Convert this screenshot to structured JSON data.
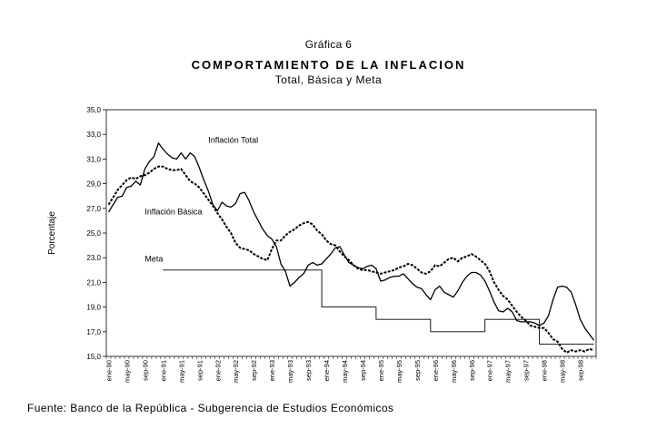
{
  "header": {
    "figure_label": "Gráfica 6",
    "title": "COMPORTAMIENTO DE LA INFLACION",
    "subtitle": "Total, Básica y Meta"
  },
  "footer": {
    "source": "Fuente: Banco de la República - Subgerencia de Estudios Económicos"
  },
  "colors": {
    "line": "#000000",
    "axis": "#000000",
    "background": "#ffffff"
  },
  "chart_data": {
    "type": "line",
    "title": "COMPORTAMIENTO DE LA INFLACION",
    "subtitle": "Total, Básica y Meta",
    "xlabel": "",
    "ylabel": "Porcentaje",
    "ylim": [
      15,
      35
    ],
    "yticks": [
      "15,0",
      "17,0",
      "19,0",
      "21,0",
      "23,0",
      "25,0",
      "27,0",
      "29,0",
      "31,0",
      "33,0",
      "35,0"
    ],
    "grid": false,
    "x_count": 108,
    "x_ticks": [
      {
        "i": 0,
        "label": "ene-90"
      },
      {
        "i": 4,
        "label": "may-90"
      },
      {
        "i": 8,
        "label": "sep-90"
      },
      {
        "i": 12,
        "label": "ene-91"
      },
      {
        "i": 16,
        "label": "may-91"
      },
      {
        "i": 20,
        "label": "sep-91"
      },
      {
        "i": 24,
        "label": "ene-92"
      },
      {
        "i": 28,
        "label": "may-92"
      },
      {
        "i": 32,
        "label": "sep-92"
      },
      {
        "i": 36,
        "label": "ene-93"
      },
      {
        "i": 40,
        "label": "may-93"
      },
      {
        "i": 44,
        "label": "sep-93"
      },
      {
        "i": 48,
        "label": "ene-94"
      },
      {
        "i": 52,
        "label": "may-94"
      },
      {
        "i": 56,
        "label": "sep-94"
      },
      {
        "i": 60,
        "label": "ene-95"
      },
      {
        "i": 64,
        "label": "may-95"
      },
      {
        "i": 68,
        "label": "sep-95"
      },
      {
        "i": 72,
        "label": "ene-96"
      },
      {
        "i": 76,
        "label": "may-96"
      },
      {
        "i": 80,
        "label": "sep-96"
      },
      {
        "i": 84,
        "label": "ene-97"
      },
      {
        "i": 88,
        "label": "may-97"
      },
      {
        "i": 92,
        "label": "sep-97"
      },
      {
        "i": 96,
        "label": "ene-98"
      },
      {
        "i": 100,
        "label": "may-98"
      },
      {
        "i": 104,
        "label": "sep-98"
      }
    ],
    "series": [
      {
        "name": "Inflación Total",
        "style": "solid",
        "points": [
          [
            0,
            26.7
          ],
          [
            1,
            27.3
          ],
          [
            2,
            27.9
          ],
          [
            3,
            28.0
          ],
          [
            4,
            28.7
          ],
          [
            5,
            28.8
          ],
          [
            6,
            29.2
          ],
          [
            7,
            28.9
          ],
          [
            8,
            30.2
          ],
          [
            9,
            30.8
          ],
          [
            10,
            31.2
          ],
          [
            11,
            32.3
          ],
          [
            12,
            31.8
          ],
          [
            13,
            31.4
          ],
          [
            14,
            31.1
          ],
          [
            15,
            31.0
          ],
          [
            16,
            31.5
          ],
          [
            17,
            31.0
          ],
          [
            18,
            31.5
          ],
          [
            19,
            31.2
          ],
          [
            20,
            30.3
          ],
          [
            21,
            29.3
          ],
          [
            22,
            28.4
          ],
          [
            23,
            27.3
          ],
          [
            24,
            26.8
          ],
          [
            25,
            27.5
          ],
          [
            26,
            27.2
          ],
          [
            27,
            27.1
          ],
          [
            28,
            27.4
          ],
          [
            29,
            28.2
          ],
          [
            30,
            28.3
          ],
          [
            31,
            27.6
          ],
          [
            32,
            26.7
          ],
          [
            33,
            26.0
          ],
          [
            34,
            25.3
          ],
          [
            35,
            24.8
          ],
          [
            36,
            24.5
          ],
          [
            37,
            23.9
          ],
          [
            38,
            22.5
          ],
          [
            39,
            21.9
          ],
          [
            40,
            20.7
          ],
          [
            41,
            21.0
          ],
          [
            42,
            21.4
          ],
          [
            43,
            21.7
          ],
          [
            44,
            22.4
          ],
          [
            45,
            22.6
          ],
          [
            46,
            22.4
          ],
          [
            47,
            22.5
          ],
          [
            48,
            22.9
          ],
          [
            49,
            23.3
          ],
          [
            50,
            23.8
          ],
          [
            51,
            23.9
          ],
          [
            52,
            23.2
          ],
          [
            53,
            22.6
          ],
          [
            54,
            22.4
          ],
          [
            55,
            22.2
          ],
          [
            56,
            22.1
          ],
          [
            57,
            22.3
          ],
          [
            58,
            22.4
          ],
          [
            59,
            22.1
          ],
          [
            60,
            21.1
          ],
          [
            61,
            21.2
          ],
          [
            62,
            21.4
          ],
          [
            63,
            21.5
          ],
          [
            64,
            21.5
          ],
          [
            65,
            21.7
          ],
          [
            66,
            21.3
          ],
          [
            67,
            20.9
          ],
          [
            68,
            20.6
          ],
          [
            69,
            20.5
          ],
          [
            70,
            20.0
          ],
          [
            71,
            19.6
          ],
          [
            72,
            20.4
          ],
          [
            73,
            20.7
          ],
          [
            74,
            20.2
          ],
          [
            75,
            20.0
          ],
          [
            76,
            19.8
          ],
          [
            77,
            20.3
          ],
          [
            78,
            21.0
          ],
          [
            79,
            21.5
          ],
          [
            80,
            21.8
          ],
          [
            81,
            21.8
          ],
          [
            82,
            21.6
          ],
          [
            83,
            21.1
          ],
          [
            84,
            20.3
          ],
          [
            85,
            19.4
          ],
          [
            86,
            18.7
          ],
          [
            87,
            18.6
          ],
          [
            88,
            18.9
          ],
          [
            89,
            18.6
          ],
          [
            90,
            17.9
          ],
          [
            91,
            17.8
          ],
          [
            92,
            17.8
          ],
          [
            93,
            17.8
          ],
          [
            94,
            17.7
          ],
          [
            95,
            17.5
          ],
          [
            96,
            17.7
          ],
          [
            97,
            18.3
          ],
          [
            98,
            19.6
          ],
          [
            99,
            20.6
          ],
          [
            100,
            20.7
          ],
          [
            101,
            20.6
          ],
          [
            102,
            20.2
          ],
          [
            103,
            19.2
          ],
          [
            104,
            18.0
          ],
          [
            105,
            17.3
          ],
          [
            106,
            16.8
          ],
          [
            107,
            16.3
          ]
        ]
      },
      {
        "name": "Inflación Básica",
        "style": "dashed",
        "points": [
          [
            0,
            27.3
          ],
          [
            1,
            27.9
          ],
          [
            2,
            28.5
          ],
          [
            3,
            28.9
          ],
          [
            4,
            29.3
          ],
          [
            5,
            29.5
          ],
          [
            6,
            29.4
          ],
          [
            7,
            29.6
          ],
          [
            8,
            29.7
          ],
          [
            9,
            29.9
          ],
          [
            10,
            30.2
          ],
          [
            11,
            30.4
          ],
          [
            12,
            30.4
          ],
          [
            13,
            30.2
          ],
          [
            14,
            30.1
          ],
          [
            15,
            30.1
          ],
          [
            16,
            30.2
          ],
          [
            17,
            29.7
          ],
          [
            18,
            29.2
          ],
          [
            19,
            29.0
          ],
          [
            20,
            28.7
          ],
          [
            21,
            28.2
          ],
          [
            22,
            27.7
          ],
          [
            23,
            27.2
          ],
          [
            24,
            26.6
          ],
          [
            25,
            26.1
          ],
          [
            26,
            25.5
          ],
          [
            27,
            25.0
          ],
          [
            28,
            24.2
          ],
          [
            29,
            23.8
          ],
          [
            30,
            23.7
          ],
          [
            31,
            23.6
          ],
          [
            32,
            23.3
          ],
          [
            33,
            23.1
          ],
          [
            34,
            22.9
          ],
          [
            35,
            22.8
          ],
          [
            36,
            23.7
          ],
          [
            37,
            24.4
          ],
          [
            38,
            24.4
          ],
          [
            39,
            24.8
          ],
          [
            40,
            25.1
          ],
          [
            41,
            25.3
          ],
          [
            42,
            25.6
          ],
          [
            43,
            25.8
          ],
          [
            44,
            25.9
          ],
          [
            45,
            25.7
          ],
          [
            46,
            25.2
          ],
          [
            47,
            24.9
          ],
          [
            48,
            24.4
          ],
          [
            49,
            24.1
          ],
          [
            50,
            24.0
          ],
          [
            51,
            23.5
          ],
          [
            52,
            23.1
          ],
          [
            53,
            22.8
          ],
          [
            54,
            22.4
          ],
          [
            55,
            22.1
          ],
          [
            56,
            22.0
          ],
          [
            57,
            22.0
          ],
          [
            58,
            21.9
          ],
          [
            59,
            21.8
          ],
          [
            60,
            21.7
          ],
          [
            61,
            21.8
          ],
          [
            62,
            21.9
          ],
          [
            63,
            22.0
          ],
          [
            64,
            22.2
          ],
          [
            65,
            22.3
          ],
          [
            66,
            22.5
          ],
          [
            67,
            22.4
          ],
          [
            68,
            22.1
          ],
          [
            69,
            21.8
          ],
          [
            70,
            21.7
          ],
          [
            71,
            21.9
          ],
          [
            72,
            22.4
          ],
          [
            73,
            22.3
          ],
          [
            74,
            22.6
          ],
          [
            75,
            22.9
          ],
          [
            76,
            23.0
          ],
          [
            77,
            22.7
          ],
          [
            78,
            23.0
          ],
          [
            79,
            23.1
          ],
          [
            80,
            23.3
          ],
          [
            81,
            23.1
          ],
          [
            82,
            22.8
          ],
          [
            83,
            22.5
          ],
          [
            84,
            21.9
          ],
          [
            85,
            21.0
          ],
          [
            86,
            20.4
          ],
          [
            87,
            19.9
          ],
          [
            88,
            19.6
          ],
          [
            89,
            19.1
          ],
          [
            90,
            18.6
          ],
          [
            91,
            18.2
          ],
          [
            92,
            17.9
          ],
          [
            93,
            17.5
          ],
          [
            94,
            17.4
          ],
          [
            95,
            17.3
          ],
          [
            96,
            17.3
          ],
          [
            97,
            16.9
          ],
          [
            98,
            16.4
          ],
          [
            99,
            16.2
          ],
          [
            100,
            15.6
          ],
          [
            101,
            15.3
          ],
          [
            102,
            15.5
          ],
          [
            103,
            15.4
          ],
          [
            104,
            15.5
          ],
          [
            105,
            15.4
          ],
          [
            106,
            15.6
          ],
          [
            107,
            15.5
          ]
        ]
      },
      {
        "name": "Meta",
        "style": "thin-step",
        "points": [
          [
            12,
            22.0
          ],
          [
            47,
            22.0
          ],
          [
            47,
            19.0
          ],
          [
            59,
            19.0
          ],
          [
            59,
            18.0
          ],
          [
            71,
            18.0
          ],
          [
            71,
            17.0
          ],
          [
            83,
            17.0
          ],
          [
            83,
            18.0
          ],
          [
            95,
            18.0
          ],
          [
            95,
            16.0
          ],
          [
            107,
            16.0
          ]
        ]
      }
    ],
    "annotations": [
      {
        "text": "Inflación Total",
        "x": 22,
        "y": 32.3
      },
      {
        "text": "Inflación Básica",
        "x": 8,
        "y": 26.5
      },
      {
        "text": "Meta",
        "x": 8,
        "y": 22.7
      }
    ]
  }
}
